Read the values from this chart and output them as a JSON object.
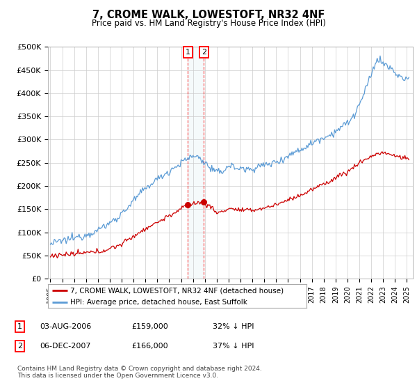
{
  "title": "7, CROME WALK, LOWESTOFT, NR32 4NF",
  "subtitle": "Price paid vs. HM Land Registry's House Price Index (HPI)",
  "ylabel_ticks": [
    "£0",
    "£50K",
    "£100K",
    "£150K",
    "£200K",
    "£250K",
    "£300K",
    "£350K",
    "£400K",
    "£450K",
    "£500K"
  ],
  "ytick_values": [
    0,
    50000,
    100000,
    150000,
    200000,
    250000,
    300000,
    350000,
    400000,
    450000,
    500000
  ],
  "ylim": [
    0,
    500000
  ],
  "hpi_color": "#5b9bd5",
  "price_color": "#cc0000",
  "sale1_x": 2006.58,
  "sale1_y": 159000,
  "sale2_x": 2007.92,
  "sale2_y": 166000,
  "legend_line1": "7, CROME WALK, LOWESTOFT, NR32 4NF (detached house)",
  "legend_line2": "HPI: Average price, detached house, East Suffolk",
  "table_row1": [
    "1",
    "03-AUG-2006",
    "£159,000",
    "32% ↓ HPI"
  ],
  "table_row2": [
    "2",
    "06-DEC-2007",
    "£166,000",
    "37% ↓ HPI"
  ],
  "footer": "Contains HM Land Registry data © Crown copyright and database right 2024.\nThis data is licensed under the Open Government Licence v3.0.",
  "background_color": "#ffffff",
  "grid_color": "#cccccc",
  "xlim_left": 1994.8,
  "xlim_right": 2025.5
}
